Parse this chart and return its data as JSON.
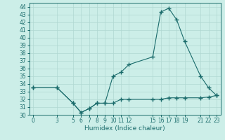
{
  "xlabel": "Humidex (Indice chaleur)",
  "bg_color": "#cceee8",
  "line_color": "#1a6b6b",
  "grid_color": "#b0d8d2",
  "series1_x": [
    0,
    3,
    5,
    6,
    7,
    8,
    9,
    10,
    11,
    12,
    15,
    16,
    17,
    18,
    19,
    21,
    22,
    23
  ],
  "series1_y": [
    33.5,
    33.5,
    31.5,
    30.3,
    30.8,
    31.5,
    31.5,
    35.0,
    35.5,
    36.5,
    37.5,
    43.3,
    43.8,
    42.3,
    39.5,
    35.0,
    33.5,
    32.5
  ],
  "series2_x": [
    0,
    3,
    5,
    6,
    7,
    8,
    9,
    10,
    11,
    12,
    15,
    16,
    17,
    18,
    19,
    21,
    22,
    23
  ],
  "series2_y": [
    33.5,
    33.5,
    31.5,
    30.3,
    30.8,
    31.5,
    31.5,
    31.5,
    32.0,
    32.0,
    32.0,
    32.0,
    32.2,
    32.2,
    32.2,
    32.2,
    32.3,
    32.5
  ],
  "xlim": [
    -0.5,
    23.5
  ],
  "ylim": [
    30,
    44.5
  ],
  "xticks": [
    0,
    3,
    5,
    6,
    7,
    8,
    9,
    10,
    11,
    12,
    15,
    16,
    17,
    18,
    19,
    21,
    22,
    23
  ],
  "yticks": [
    30,
    31,
    32,
    33,
    34,
    35,
    36,
    37,
    38,
    39,
    40,
    41,
    42,
    43,
    44
  ],
  "marker": "+",
  "markersize": 4,
  "linewidth": 0.8,
  "tick_fontsize": 5.5,
  "xlabel_fontsize": 6.5
}
